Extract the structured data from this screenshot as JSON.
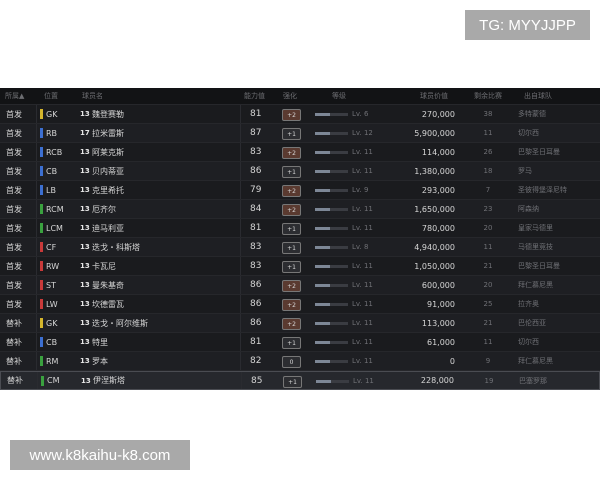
{
  "watermarks": {
    "top": "TG: MYYJJPP",
    "bottom": "www.k8kaihu-k8.com"
  },
  "table": {
    "headers": [
      "所属▲",
      "位置",
      "球员名",
      "能力值",
      "强化",
      "等级",
      "球员价值",
      "剩余比赛",
      "出自球队"
    ],
    "rows": [
      {
        "squad": "首发",
        "pos": "GK",
        "pos_color": "#d4b52c",
        "badge": "13",
        "name": "魏登赛勒",
        "rating": "81",
        "enhance": "+2",
        "enhance_color": "#5a3a30",
        "level": "Lv. 6",
        "value": "270,000",
        "matches": "38",
        "club": "多特蒙德"
      },
      {
        "squad": "首发",
        "pos": "RB",
        "pos_color": "#3c6fd1",
        "badge": "17",
        "name": "拉米雷斯",
        "rating": "87",
        "enhance": "+1",
        "enhance_color": "#2c2d31",
        "level": "Lv. 12",
        "value": "5,900,000",
        "matches": "11",
        "club": "切尔西"
      },
      {
        "squad": "首发",
        "pos": "RCB",
        "pos_color": "#3c6fd1",
        "badge": "13",
        "name": "阿莱克斯",
        "rating": "83",
        "enhance": "+2",
        "enhance_color": "#5a3a30",
        "level": "Lv. 11",
        "value": "114,000",
        "matches": "26",
        "club": "巴黎圣日耳曼"
      },
      {
        "squad": "首发",
        "pos": "CB",
        "pos_color": "#3c6fd1",
        "badge": "13",
        "name": "贝内蒂亚",
        "rating": "86",
        "enhance": "+1",
        "enhance_color": "#2c2d31",
        "level": "Lv. 11",
        "value": "1,380,000",
        "matches": "18",
        "club": "罗马"
      },
      {
        "squad": "首发",
        "pos": "LB",
        "pos_color": "#3c6fd1",
        "badge": "13",
        "name": "克里希托",
        "rating": "79",
        "enhance": "+2",
        "enhance_color": "#5a3a30",
        "level": "Lv. 9",
        "value": "293,000",
        "matches": "7",
        "club": "圣彼得堡泽尼特"
      },
      {
        "squad": "首发",
        "pos": "RCM",
        "pos_color": "#3aa13f",
        "badge": "13",
        "name": "厄齐尔",
        "rating": "84",
        "enhance": "+2",
        "enhance_color": "#5a3a30",
        "level": "Lv. 11",
        "value": "1,650,000",
        "matches": "23",
        "club": "阿森纳"
      },
      {
        "squad": "首发",
        "pos": "LCM",
        "pos_color": "#3aa13f",
        "badge": "13",
        "name": "迪马利亚",
        "rating": "81",
        "enhance": "+1",
        "enhance_color": "#2c2d31",
        "level": "Lv. 11",
        "value": "780,000",
        "matches": "20",
        "club": "皇家马德里"
      },
      {
        "squad": "首发",
        "pos": "CF",
        "pos_color": "#c93a3a",
        "badge": "13",
        "name": "迭戈・科斯塔",
        "rating": "83",
        "enhance": "+1",
        "enhance_color": "#2c2d31",
        "level": "Lv. 8",
        "value": "4,940,000",
        "matches": "11",
        "club": "马德里竞技"
      },
      {
        "squad": "首发",
        "pos": "RW",
        "pos_color": "#c93a3a",
        "badge": "13",
        "name": "卡瓦尼",
        "rating": "83",
        "enhance": "+1",
        "enhance_color": "#2c2d31",
        "level": "Lv. 11",
        "value": "1,050,000",
        "matches": "21",
        "club": "巴黎圣日耳曼"
      },
      {
        "squad": "首发",
        "pos": "ST",
        "pos_color": "#c93a3a",
        "badge": "13",
        "name": "曼朱基奇",
        "rating": "86",
        "enhance": "+2",
        "enhance_color": "#5a3a30",
        "level": "Lv. 11",
        "value": "600,000",
        "matches": "20",
        "club": "拜仁慕尼黑"
      },
      {
        "squad": "首发",
        "pos": "LW",
        "pos_color": "#c93a3a",
        "badge": "13",
        "name": "坎德雷瓦",
        "rating": "86",
        "enhance": "+2",
        "enhance_color": "#5a3a30",
        "level": "Lv. 11",
        "value": "91,000",
        "matches": "25",
        "club": "拉齐奥"
      },
      {
        "squad": "替补",
        "pos": "GK",
        "pos_color": "#d4b52c",
        "badge": "13",
        "name": "迭戈・阿尔维斯",
        "rating": "86",
        "enhance": "+2",
        "enhance_color": "#5a3a30",
        "level": "Lv. 11",
        "value": "113,000",
        "matches": "21",
        "club": "巴伦西亚"
      },
      {
        "squad": "替补",
        "pos": "CB",
        "pos_color": "#3c6fd1",
        "badge": "13",
        "name": "特里",
        "rating": "81",
        "enhance": "+1",
        "enhance_color": "#2c2d31",
        "level": "Lv. 11",
        "value": "61,000",
        "matches": "11",
        "club": "切尔西"
      },
      {
        "squad": "替补",
        "pos": "RM",
        "pos_color": "#3aa13f",
        "badge": "13",
        "name": "罗本",
        "rating": "82",
        "enhance": "0",
        "enhance_color": "#2c2d31",
        "level": "Lv. 11",
        "value": "0",
        "matches": "9",
        "club": "拜仁慕尼黑"
      },
      {
        "squad": "替补",
        "pos": "CM",
        "pos_color": "#3aa13f",
        "badge": "13",
        "name": "伊涅斯塔",
        "rating": "85",
        "enhance": "+1",
        "enhance_color": "#2c2d31",
        "level": "Lv. 11",
        "value": "228,000",
        "matches": "19",
        "club": "巴塞罗那"
      }
    ]
  }
}
